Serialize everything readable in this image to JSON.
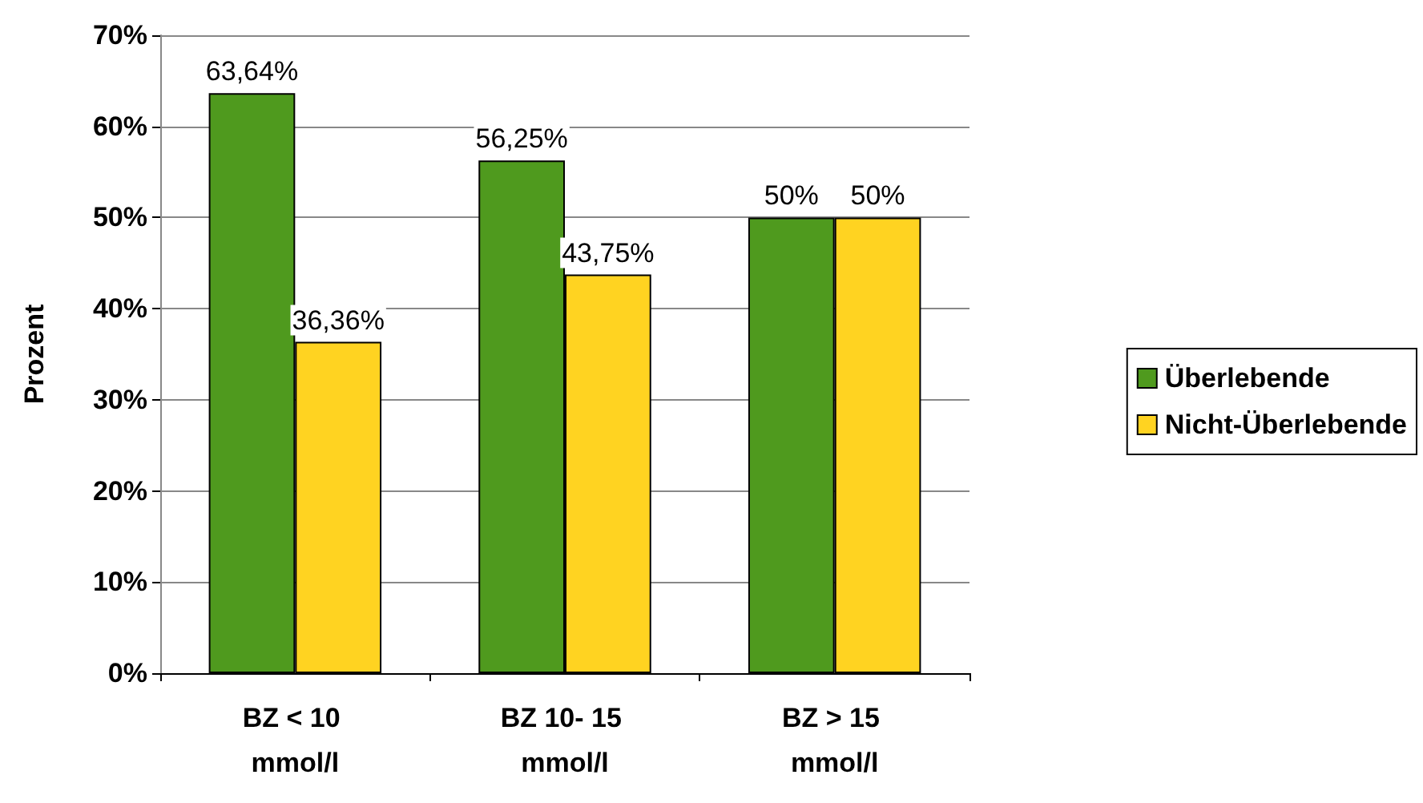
{
  "chart_data": {
    "type": "bar",
    "ylabel": "Prozent",
    "categories": [
      "BZ < 10 mmol/l",
      "BZ 10- 15 mmol/l",
      "BZ > 15 mmol/l"
    ],
    "series": [
      {
        "name": "Überlebende",
        "color": "#4f9a1e",
        "values": [
          63.64,
          56.25,
          50
        ],
        "value_labels": [
          "63,64%",
          "56,25%",
          "50%"
        ]
      },
      {
        "name": "Nicht-Überlebende",
        "color": "#ffd321",
        "values": [
          36.36,
          43.75,
          50
        ],
        "value_labels": [
          "36,36%",
          "43,75%",
          "50%"
        ]
      }
    ],
    "ylim": [
      0,
      70
    ],
    "yticks": [
      {
        "value": 0,
        "label": "0%"
      },
      {
        "value": 10,
        "label": "10%"
      },
      {
        "value": 20,
        "label": "20%"
      },
      {
        "value": 30,
        "label": "30%"
      },
      {
        "value": 40,
        "label": "40%"
      },
      {
        "value": 50,
        "label": "50%"
      },
      {
        "value": 60,
        "label": "60%"
      },
      {
        "value": 70,
        "label": "70%"
      }
    ],
    "grid": "y",
    "legend": "right"
  }
}
